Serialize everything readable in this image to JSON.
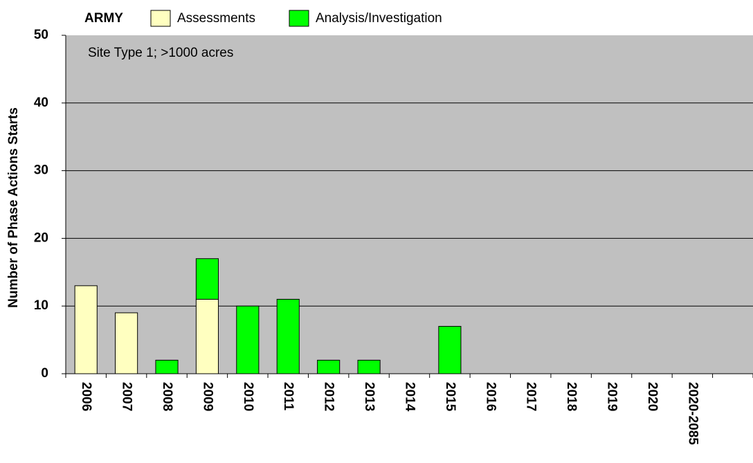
{
  "chart_data": {
    "type": "bar",
    "stacked": true,
    "legend_title": "ARMY",
    "annotation": "Site Type 1; >1000 acres",
    "y_label": "Number of Phase Actions Starts",
    "categories": [
      "2006",
      "2007",
      "2008",
      "2009",
      "2010",
      "2011",
      "2012",
      "2013",
      "2014",
      "2015",
      "2016",
      "2017",
      "2018",
      "2019",
      "2020",
      "2020-2085",
      null
    ],
    "series": [
      {
        "name": "Assessments",
        "color": "#ffffc0",
        "values": [
          13,
          9,
          0,
          11,
          0,
          0,
          0,
          0,
          0,
          0,
          0,
          0,
          0,
          0,
          0,
          0,
          null
        ]
      },
      {
        "name": "Analysis/Investigation",
        "color": "#00ff00",
        "values": [
          0,
          0,
          2,
          6,
          10,
          11,
          2,
          2,
          0,
          7,
          0,
          0,
          0,
          0,
          0,
          0,
          null
        ]
      }
    ],
    "ylim": [
      0,
      50
    ],
    "yticks": [
      0,
      10,
      20,
      30,
      40,
      50
    ],
    "grid": true,
    "plot_color": "#c0c0c0"
  }
}
